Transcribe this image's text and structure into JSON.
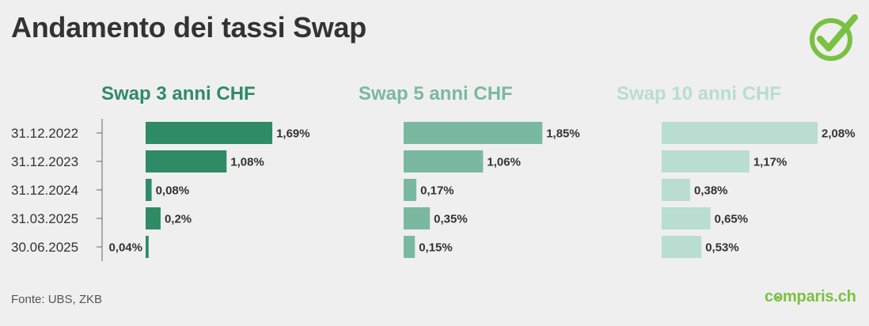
{
  "title": "Andamento dei tassi Swap",
  "source": "Fonte: UBS, ZKB",
  "brand": {
    "prefix": "c",
    "o": "o",
    "suffix": "mparis",
    "tld": ".ch"
  },
  "logo_icon": "check-circle-icon",
  "colors": {
    "background": "#efefef",
    "text": "#333333",
    "brand_green": "#7ac142"
  },
  "chart_data": {
    "type": "bar",
    "orientation": "horizontal",
    "categories": [
      "31.12.2022",
      "31.12.2023",
      "31.12.2024",
      "31.03.2025",
      "30.06.2025"
    ],
    "series": [
      {
        "name": "Swap 3 anni CHF",
        "color": "#2e8b65",
        "values": [
          1.69,
          1.08,
          0.08,
          0.2,
          0.04
        ],
        "labels": [
          "1,69%",
          "1,08%",
          "0,08%",
          "0,2%",
          "0,04%"
        ]
      },
      {
        "name": "Swap 5 anni CHF",
        "color": "#7ab9a0",
        "values": [
          1.85,
          1.06,
          0.17,
          0.35,
          0.15
        ],
        "labels": [
          "1,85%",
          "1,06%",
          "0,17%",
          "0,35%",
          "0,15%"
        ]
      },
      {
        "name": "Swap 10 anni CHF",
        "color": "#b9ddd0",
        "values": [
          2.08,
          1.17,
          0.38,
          0.65,
          0.53
        ],
        "labels": [
          "2,08%",
          "1,17%",
          "0,38%",
          "0,65%",
          "0,53%"
        ]
      }
    ],
    "xlim": [
      0,
      2.08
    ],
    "grid": false,
    "legend": "none"
  }
}
